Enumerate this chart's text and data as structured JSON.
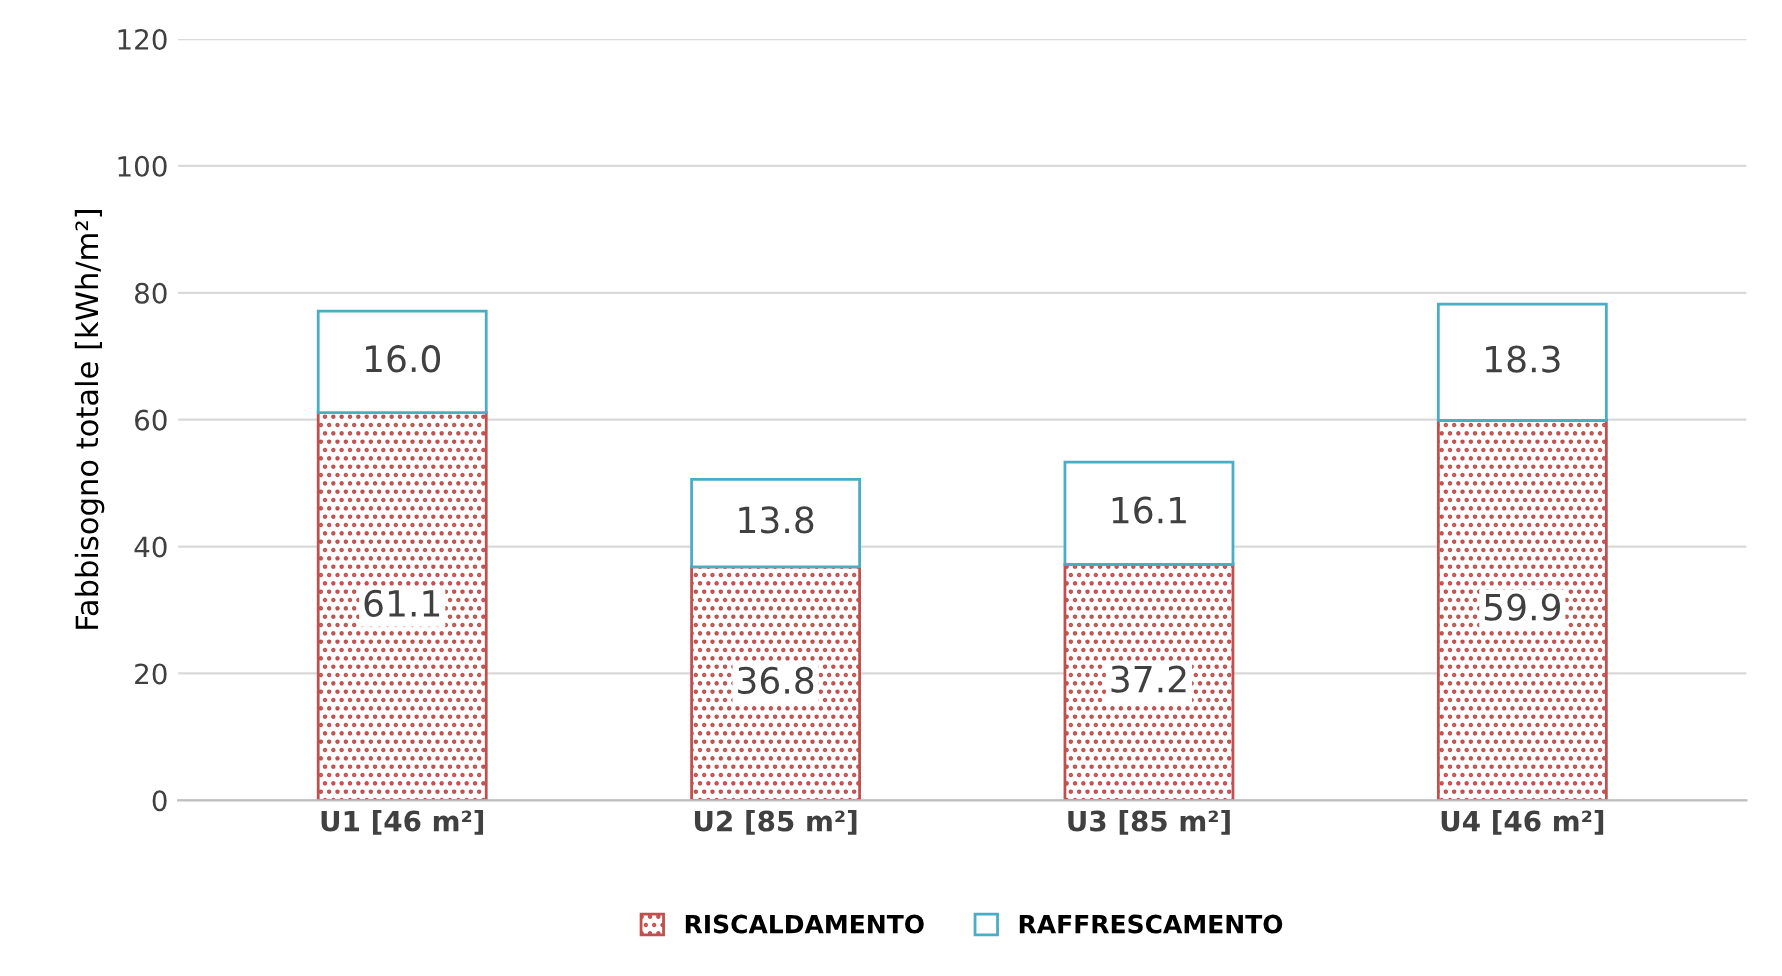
{
  "chart_data": {
    "type": "bar",
    "stacked": true,
    "ylabel": "Fabbisogno totale [kWh/m²]",
    "categories": [
      "U1 [46 m²]",
      "U2 [85 m²]",
      "U3 [85 m²]",
      "U4 [46 m²]"
    ],
    "series": [
      {
        "name": "RISCALDAMENTO",
        "color": "#c0504d",
        "values": [
          61.1,
          36.8,
          37.2,
          59.9
        ],
        "value_labels": [
          "61.1",
          "36.8",
          "37.2",
          "59.9"
        ]
      },
      {
        "name": "RAFFRESCAMENTO",
        "color": "#4bacc6",
        "values": [
          16.0,
          13.8,
          16.1,
          18.3
        ],
        "value_labels": [
          "16.0",
          "13.8",
          "16.1",
          "18.3"
        ]
      }
    ],
    "ylim": [
      0,
      120
    ],
    "yticks": [
      0,
      20,
      40,
      60,
      80,
      100,
      120
    ],
    "grid": "y",
    "legend": "bottom"
  }
}
